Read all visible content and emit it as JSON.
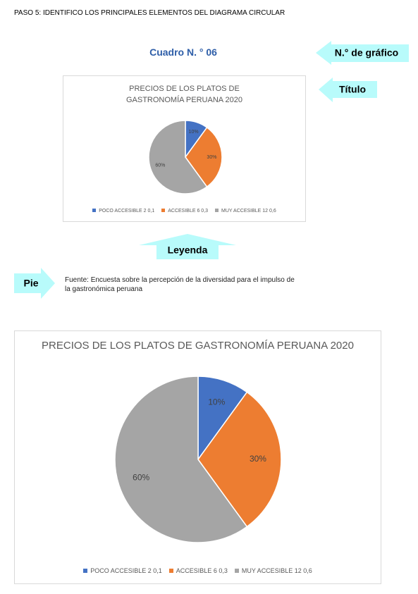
{
  "header": {
    "title": "PASO 5: IDENTIFICO LOS PRINCIPALES ELEMENTOS DEL DIAGRAMA CIRCULAR"
  },
  "cuadro": "Cuadro N. ° 06",
  "callouts": {
    "numero": "N.° de gráfico",
    "titulo": "Título",
    "leyenda": "Leyenda",
    "pie": "Pie"
  },
  "fuente": "Fuente: Encuesta sobre la percepción de la diversidad para el impulso de la gastronómica peruana",
  "chart_data": [
    {
      "type": "pie",
      "title": "PRECIOS DE LOS PLATOS DE GASTRONOMÍA PERUANA 2020",
      "categories": [
        "POCO ACCESIBLE 2 0,1",
        "ACCESIBLE 6 0,3",
        "MUY ACCESIBLE 12 0,6"
      ],
      "values": [
        10,
        30,
        60
      ],
      "value_labels": [
        "10%",
        "30%",
        "60%"
      ],
      "colors": [
        "#4472c4",
        "#ed7d31",
        "#a5a5a5"
      ]
    },
    {
      "type": "pie",
      "title": "PRECIOS DE LOS PLATOS DE GASTRONOMÍA PERUANA 2020",
      "categories": [
        "POCO ACCESIBLE 2 0,1",
        "ACCESIBLE 6 0,3",
        "MUY ACCESIBLE 12 0,6"
      ],
      "values": [
        10,
        30,
        60
      ],
      "value_labels": [
        "10%",
        "30%",
        "60%"
      ],
      "colors": [
        "#4472c4",
        "#ed7d31",
        "#a5a5a5"
      ]
    }
  ]
}
